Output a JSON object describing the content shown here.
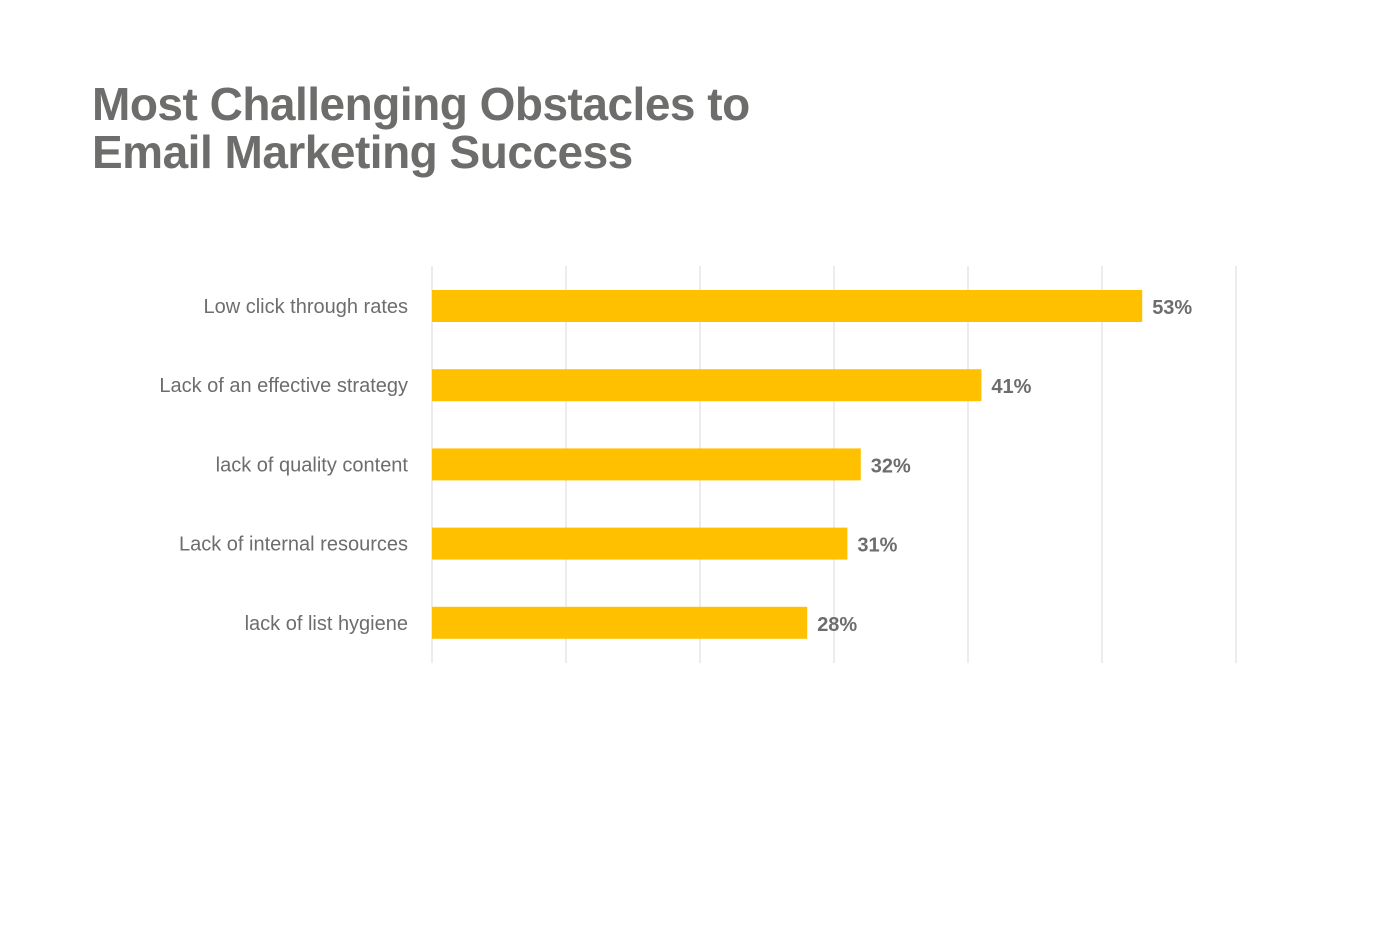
{
  "chart_data": {
    "type": "bar",
    "orientation": "horizontal",
    "title_lines": [
      "Most Challenging Obstacles to",
      "Email Marketing Success"
    ],
    "categories": [
      "Low click through rates",
      "Lack of an effective strategy",
      "lack of quality content",
      "Lack of internal resources",
      "lack of list hygiene"
    ],
    "values": [
      53,
      41,
      32,
      31,
      28
    ],
    "value_labels": [
      "53%",
      "41%",
      "32%",
      "31%",
      "28%"
    ],
    "xlim": [
      0,
      60
    ],
    "grid": true,
    "bar_color": "#ffc000",
    "grid_color": "#e6e6e6",
    "text_color": "#6d6d6b"
  }
}
